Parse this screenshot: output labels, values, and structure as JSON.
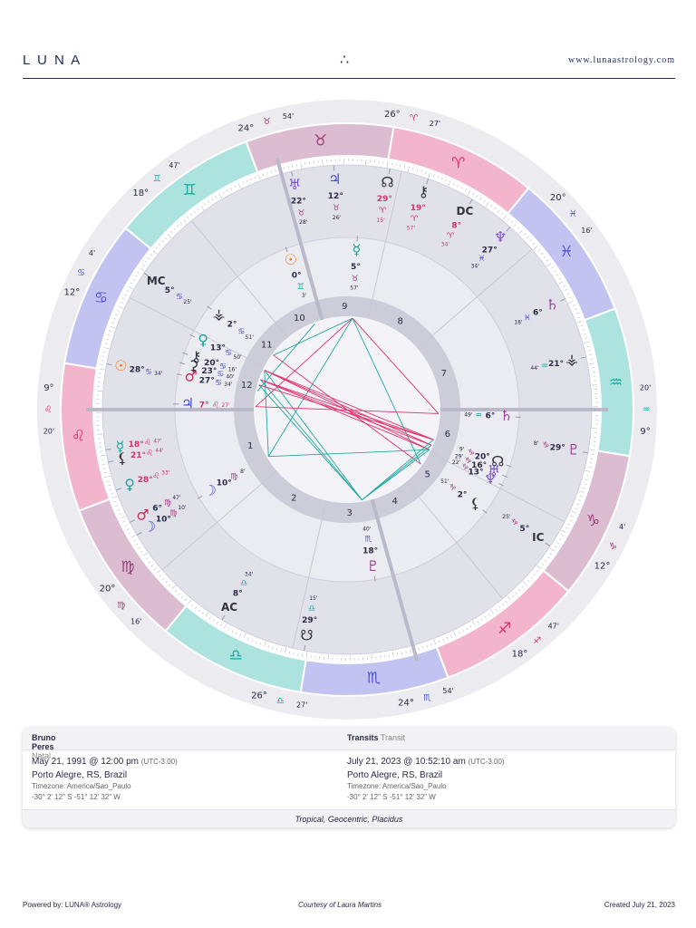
{
  "header": {
    "brand": "L U N A",
    "logo": "∴",
    "url": "www.lunaastrology.com"
  },
  "wheel": {
    "signs": [
      "♈",
      "♉",
      "♊",
      "♋",
      "♌",
      "♍",
      "♎",
      "♏",
      "♐",
      "♑",
      "♒",
      "♓"
    ],
    "cusps": [
      {
        "house": "1",
        "deg": "9°",
        "sign": "♌",
        "min": "20'"
      },
      {
        "house": "2",
        "deg": "20°",
        "sign": "♍",
        "min": "16'"
      },
      {
        "house": "3",
        "deg": "26°",
        "sign": "♎",
        "min": "27'"
      },
      {
        "house": "4",
        "deg": "24°",
        "sign": "♏",
        "min": "54'"
      },
      {
        "house": "5",
        "deg": "18°",
        "sign": "♐",
        "min": "47'"
      },
      {
        "house": "6",
        "deg": "12°",
        "sign": "♑",
        "min": "4'"
      },
      {
        "house": "7",
        "deg": "9°",
        "sign": "♒",
        "min": "20'"
      },
      {
        "house": "8",
        "deg": "20°",
        "sign": "♓",
        "min": "16'"
      },
      {
        "house": "9",
        "deg": "26°",
        "sign": "♈",
        "min": "27'"
      },
      {
        "house": "10",
        "deg": "24°",
        "sign": "♉",
        "min": "54'"
      },
      {
        "house": "11",
        "deg": "18°",
        "sign": "♊",
        "min": "47'"
      },
      {
        "house": "12",
        "deg": "12°",
        "sign": "♋",
        "min": "4'"
      }
    ],
    "transit_planets": [
      {
        "glyph": "♅",
        "color": "#7b52c9",
        "deg": "22°",
        "sign": "♉",
        "min": "28'"
      },
      {
        "glyph": "♃",
        "color": "#4b4bd0",
        "deg": "12°",
        "sign": "♉",
        "min": "26'"
      },
      {
        "glyph": "☊",
        "color": "#333340",
        "deg": "29°",
        "sign": "♈",
        "min": "15'"
      },
      {
        "glyph": "⚷",
        "color": "#333340",
        "deg": "19°",
        "sign": "♈",
        "min": "57'"
      },
      {
        "glyph": "DC",
        "color": "#333340",
        "deg": "8°",
        "sign": "♈",
        "min": "34'"
      },
      {
        "glyph": "♆",
        "color": "#7b52c9",
        "deg": "27°",
        "sign": "♓",
        "min": "34'"
      },
      {
        "glyph": "♄",
        "color": "#a0409a",
        "deg": "6°",
        "sign": "♓",
        "min": "18'"
      },
      {
        "glyph": "⚶",
        "color": "#333340",
        "deg": "21°",
        "sign": "♒",
        "min": "44'"
      },
      {
        "glyph": "♇",
        "color": "#a0409a",
        "deg": "29°",
        "sign": "♑",
        "min": "8'"
      },
      {
        "glyph": "IC",
        "color": "#333340",
        "deg": "5°",
        "sign": "♑",
        "min": "25'"
      },
      {
        "glyph": "☋",
        "color": "#333340",
        "deg": "29°",
        "sign": "♎",
        "min": "15'"
      },
      {
        "glyph": "AC",
        "color": "#333340",
        "deg": "8°",
        "sign": "♎",
        "min": "34'"
      },
      {
        "glyph": "☽",
        "color": "#4b4bd0",
        "deg": "10°",
        "sign": "♍",
        "min": "10'"
      },
      {
        "glyph": "♂",
        "color": "#d02a5a",
        "deg": "6°",
        "sign": "♍",
        "min": "47'"
      },
      {
        "glyph": "♀",
        "color": "#1aa69a",
        "deg": "28°",
        "sign": "♌",
        "min": "33'"
      },
      {
        "glyph": "⚸",
        "color": "#333340",
        "deg": "21°",
        "sign": "♌",
        "min": "44'"
      },
      {
        "glyph": "☿",
        "color": "#1aa69a",
        "deg": "18°",
        "sign": "♌",
        "min": "47'"
      },
      {
        "glyph": "☉",
        "color": "#f08020",
        "deg": "28°",
        "sign": "♋",
        "min": "34'"
      },
      {
        "glyph": "MC",
        "color": "#333340",
        "deg": "5°",
        "sign": "♋",
        "min": "25'"
      }
    ],
    "natal_planets": [
      {
        "glyph": "☉",
        "color": "#f08020",
        "deg": "0°",
        "sign": "♊",
        "min": "3'"
      },
      {
        "glyph": "☿",
        "color": "#1aa69a",
        "deg": "5°",
        "sign": "♉",
        "min": "57'"
      },
      {
        "glyph": "⚶",
        "color": "#333340",
        "deg": "2°",
        "sign": "♋",
        "min": "51'"
      },
      {
        "glyph": "♀",
        "color": "#1aa69a",
        "deg": "13°",
        "sign": "♋",
        "min": "50'"
      },
      {
        "glyph": "⚷",
        "color": "#333340",
        "deg": "20°",
        "sign": "♋",
        "min": "16'"
      },
      {
        "glyph": "⚳",
        "color": "#333340",
        "deg": "23°",
        "sign": "♋",
        "min": "40'"
      },
      {
        "glyph": "♂",
        "color": "#d02a5a",
        "deg": "27°",
        "sign": "♋",
        "min": "34'"
      },
      {
        "glyph": "♃",
        "color": "#4b4bd0",
        "deg": "7°",
        "sign": "♌",
        "min": "27'"
      },
      {
        "glyph": "☽",
        "color": "#4b4bd0",
        "deg": "10°",
        "sign": "♍",
        "min": "8'"
      },
      {
        "glyph": "♇",
        "color": "#a0409a",
        "deg": "18°",
        "sign": "♏",
        "min": "40'"
      },
      {
        "glyph": "⚸",
        "color": "#333340",
        "deg": "2°",
        "sign": "♑",
        "min": "51'"
      },
      {
        "glyph": "♆",
        "color": "#7b52c9",
        "deg": "13°",
        "sign": "♑",
        "min": "22'"
      },
      {
        "glyph": "♅",
        "color": "#7b52c9",
        "deg": "16°",
        "sign": "♑",
        "min": "29'"
      },
      {
        "glyph": "☊",
        "color": "#333340",
        "deg": "20°",
        "sign": "♑",
        "min": "9'"
      },
      {
        "glyph": "♄",
        "color": "#a0409a",
        "deg": "6°",
        "sign": "♒",
        "min": "49'"
      }
    ]
  },
  "panel": {
    "natal": {
      "name": "Bruno Peres",
      "kind": "Natal",
      "date": "May 21, 1991 @ 12:00 pm",
      "utc": "(UTC-3.00)",
      "place": "Porto Alegre, RS, Brazil",
      "timezone": "Timezone: America/Sao_Paulo",
      "coords": "-30° 2' 12\" S -51° 12' 32\" W"
    },
    "transit": {
      "name": "Transits",
      "kind": "Transit",
      "date": "July 21, 2023 @ 10:52:10 am",
      "utc": "(UTC-3.00)",
      "place": "Porto Alegre, RS, Brazil",
      "timezone": "Timezone: America/Sao_Paulo",
      "coords": "-30° 2' 12\" S -51° 12' 32\" W"
    },
    "system": "Tropical, Geocentric, Placidus"
  },
  "footer": {
    "powered": "Powered by: LUNA® Astrology",
    "courtesy": "Courtesy of Laura Martins",
    "created": "Created July 21, 2023"
  }
}
